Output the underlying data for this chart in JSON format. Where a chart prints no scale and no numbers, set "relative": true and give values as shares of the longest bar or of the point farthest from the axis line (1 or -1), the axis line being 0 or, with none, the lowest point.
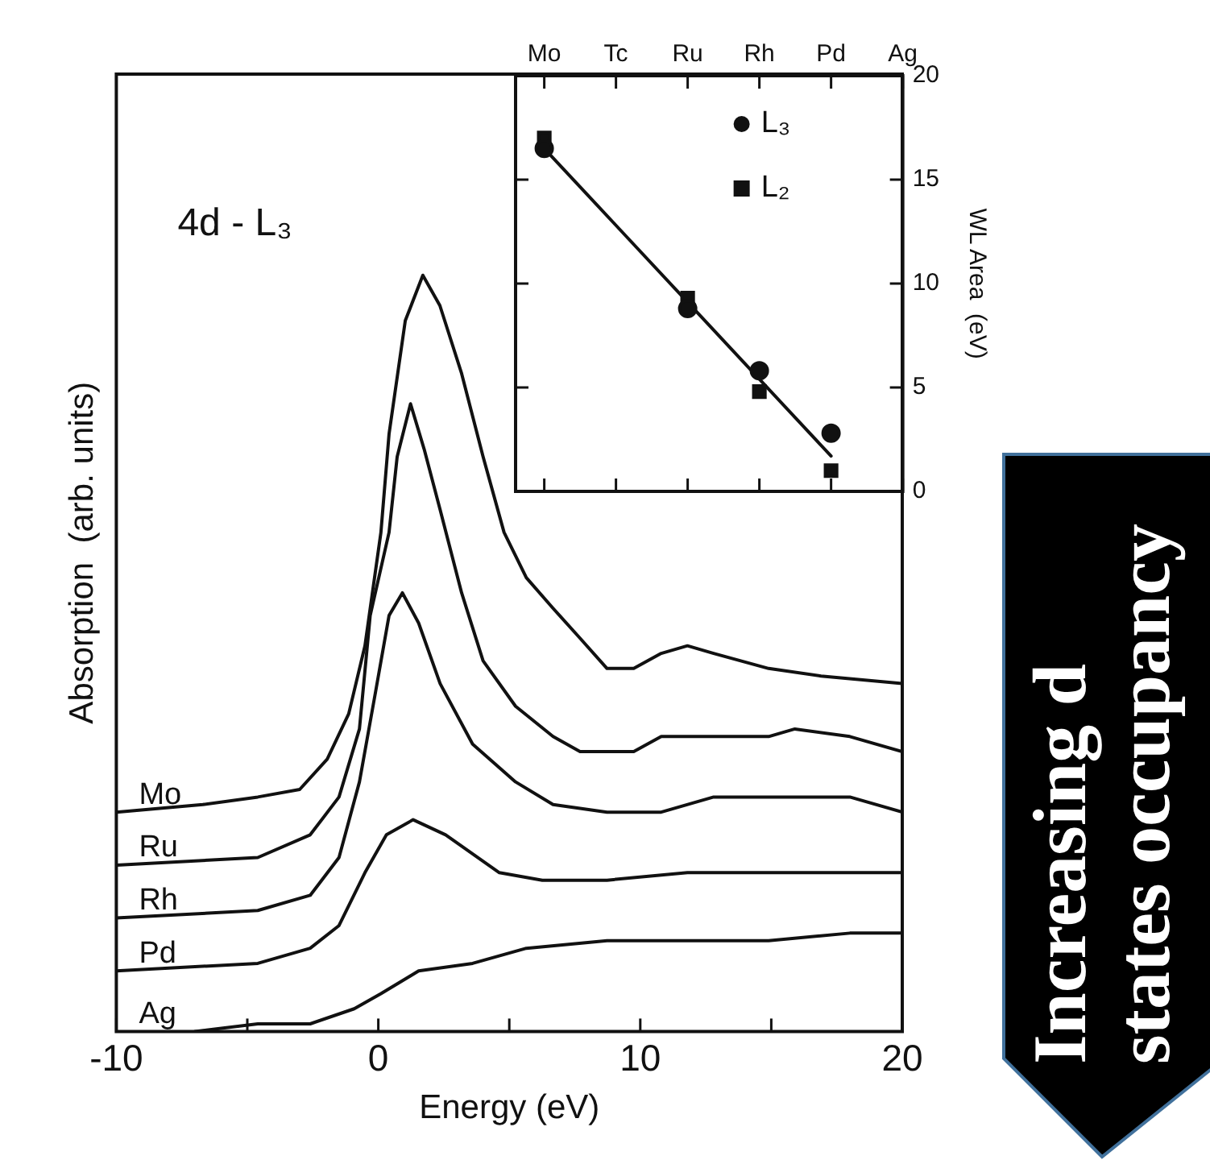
{
  "chart_data": [
    {
      "type": "line",
      "xlabel": "Energy (eV)",
      "ylabel": "Absorption  (arb. units)",
      "relative": true,
      "xlim": [
        -10,
        20
      ],
      "xticks": [
        -10,
        {
          "value": -5,
          "label": null
        },
        0,
        {
          "value": 5,
          "label": null
        },
        10,
        {
          "value": 15,
          "label": null
        },
        20
      ],
      "grid": false,
      "marker": "none",
      "line_style": "solid",
      "annotations": [
        "4d - L₃"
      ],
      "series": [
        {
          "name": "Mo",
          "color": "#111111",
          "x": [
            -10,
            -6.7,
            -4.6,
            -3.0,
            -1.95,
            -1.13,
            -0.51,
            0.1,
            0.41,
            1.03,
            1.7,
            2.35,
            3.18,
            4.0,
            4.8,
            5.65,
            6.66,
            7.7,
            8.73,
            9.75,
            10.8,
            11.8,
            12.8,
            14.9,
            16.9,
            20
          ],
          "values": [
            0.29,
            0.3,
            0.31,
            0.32,
            0.36,
            0.42,
            0.51,
            0.66,
            0.79,
            0.94,
            1.0,
            0.96,
            0.87,
            0.76,
            0.66,
            0.6,
            0.56,
            0.52,
            0.48,
            0.48,
            0.5,
            0.51,
            0.5,
            0.48,
            0.47,
            0.46
          ]
        },
        {
          "name": "Ru",
          "color": "#111111",
          "x": [
            -10,
            -4.6,
            -2.6,
            -1.5,
            -0.72,
            -0.31,
            0.41,
            0.72,
            1.23,
            1.75,
            2.36,
            3.18,
            4.0,
            5.24,
            6.67,
            7.7,
            8.73,
            9.75,
            10.8,
            12.8,
            14.9,
            15.9,
            18,
            20
          ],
          "values": [
            0.22,
            0.23,
            0.26,
            0.31,
            0.4,
            0.55,
            0.66,
            0.76,
            0.83,
            0.77,
            0.69,
            0.58,
            0.49,
            0.43,
            0.39,
            0.37,
            0.37,
            0.37,
            0.39,
            0.39,
            0.39,
            0.4,
            0.39,
            0.37
          ]
        },
        {
          "name": "Rh",
          "color": "#111111",
          "x": [
            -10,
            -4.6,
            -2.6,
            -1.5,
            -0.72,
            -0.1,
            0.41,
            0.92,
            1.54,
            2.36,
            3.6,
            5.24,
            6.67,
            8.73,
            10.8,
            12.8,
            15.9,
            18,
            20
          ],
          "values": [
            0.15,
            0.16,
            0.18,
            0.23,
            0.33,
            0.45,
            0.55,
            0.58,
            0.54,
            0.46,
            0.38,
            0.33,
            0.3,
            0.29,
            0.29,
            0.31,
            0.31,
            0.31,
            0.29
          ]
        },
        {
          "name": "Pd",
          "color": "#111111",
          "x": [
            -10,
            -4.6,
            -2.6,
            -1.5,
            -0.51,
            0.31,
            1.33,
            2.57,
            4.62,
            6.26,
            8.73,
            11.8,
            14.9,
            18,
            20
          ],
          "values": [
            0.08,
            0.09,
            0.11,
            0.14,
            0.21,
            0.26,
            0.28,
            0.26,
            0.21,
            0.2,
            0.2,
            0.21,
            0.21,
            0.21,
            0.21
          ]
        },
        {
          "name": "Ag",
          "color": "#111111",
          "x": [
            -7,
            -4.6,
            -2.6,
            -0.92,
            0.1,
            1.54,
            3.6,
            5.65,
            8.73,
            11.8,
            14.9,
            18,
            20
          ],
          "values": [
            0,
            0.01,
            0.01,
            0.03,
            0.05,
            0.08,
            0.09,
            0.11,
            0.12,
            0.12,
            0.12,
            0.13,
            0.13
          ]
        }
      ]
    },
    {
      "type": "scatter",
      "ylabel": "WL Area  (eV)",
      "categories": [
        "Mo",
        "Tc",
        "Ru",
        "Rh",
        "Pd",
        "Ag"
      ],
      "ylim": [
        0,
        20
      ],
      "yticks": [
        0,
        5,
        10,
        15,
        20
      ],
      "grid": false,
      "legend": "top right",
      "series": [
        {
          "name": "L₃",
          "type": "scatter",
          "marker": "circle",
          "color": "#111111",
          "values": [
            16.5,
            null,
            8.8,
            5.8,
            2.8,
            null
          ]
        },
        {
          "name": "L₂",
          "type": "scatter",
          "marker": "square",
          "color": "#111111",
          "values": [
            17.0,
            null,
            9.3,
            4.8,
            1.0,
            null
          ]
        },
        {
          "type": "line",
          "marker": "none",
          "color": "#111111",
          "values": [
            16.5,
            12.8,
            9.1,
            5.4,
            1.7,
            null
          ]
        }
      ]
    },
    {
      "type": "other",
      "annotations": [
        "Increasing d states occupancy"
      ]
    }
  ]
}
